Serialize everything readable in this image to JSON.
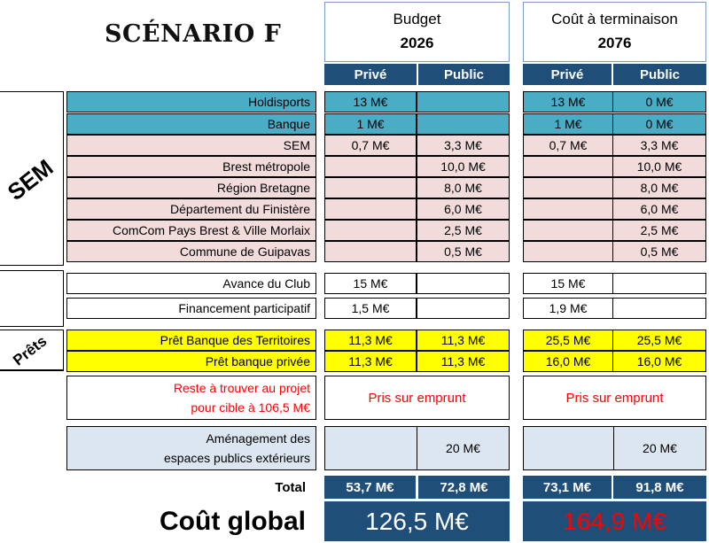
{
  "title": "SCÉNARIO F",
  "groups": {
    "budget": {
      "label": "Budget",
      "year": "2026"
    },
    "cout": {
      "label": "Coût à terminaison",
      "year": "2076"
    }
  },
  "sub": {
    "prive": "Privé",
    "public": "Public"
  },
  "side": {
    "sem": "SEM",
    "prets": "Prêts"
  },
  "rows": [
    {
      "label": "Holdisports",
      "b_prive": "13 M€",
      "b_public": "",
      "c_prive": "13 M€",
      "c_public": "0 M€"
    },
    {
      "label": "Banque",
      "b_prive": "1 M€",
      "b_public": "",
      "c_prive": "1 M€",
      "c_public": "0 M€"
    },
    {
      "label": "SEM",
      "b_prive": "0,7 M€",
      "b_public": "3,3 M€",
      "c_prive": "0,7 M€",
      "c_public": "3,3 M€"
    },
    {
      "label": "Brest métropole",
      "b_prive": "",
      "b_public": "10,0 M€",
      "c_prive": "",
      "c_public": "10,0 M€"
    },
    {
      "label": "Région Bretagne",
      "b_prive": "",
      "b_public": "8,0 M€",
      "c_prive": "",
      "c_public": "8,0 M€"
    },
    {
      "label": "Département du Finistère",
      "b_prive": "",
      "b_public": "6,0 M€",
      "c_prive": "",
      "c_public": "6,0 M€"
    },
    {
      "label": "ComCom Pays Brest & Ville Morlaix",
      "b_prive": "",
      "b_public": "2,5 M€",
      "c_prive": "",
      "c_public": "2,5 M€"
    },
    {
      "label": "Commune de Guipavas",
      "b_prive": "",
      "b_public": "0,5 M€",
      "c_prive": "",
      "c_public": "0,5 M€"
    },
    {
      "label": "Avance du Club",
      "b_prive": "15 M€",
      "b_public": "",
      "c_prive": "15 M€",
      "c_public": ""
    },
    {
      "label": "Financement participatif",
      "b_prive": "1,5 M€",
      "b_public": "",
      "c_prive": "1,9 M€",
      "c_public": ""
    },
    {
      "label": "Prêt Banque des Territoires",
      "b_prive": "11,3 M€",
      "b_public": "11,3 M€",
      "c_prive": "25,5 M€",
      "c_public": "25,5 M€"
    },
    {
      "label": "Prêt banque privée",
      "b_prive": "11,3 M€",
      "b_public": "11,3 M€",
      "c_prive": "16,0 M€",
      "c_public": "16,0 M€"
    }
  ],
  "reste": {
    "line1": "Reste à trouver au projet",
    "line2": "pour cible à 106,5 M€",
    "budget": "Pris sur emprunt",
    "cout": "Pris sur emprunt"
  },
  "amenagement": {
    "line1": "Aménagement des",
    "line2": "espaces publics extérieurs",
    "b_public": "20 M€",
    "c_public": "20 M€"
  },
  "total": {
    "label": "Total",
    "b_prive": "53,7 M€",
    "b_public": "72,8 M€",
    "c_prive": "73,1 M€",
    "c_public": "91,8 M€"
  },
  "global": {
    "label": "Coût global",
    "budget": "126,5 M€",
    "cout": "164,9 M€"
  }
}
